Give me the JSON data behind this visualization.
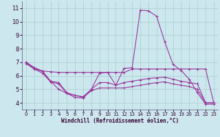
{
  "xlabel": "Windchill (Refroidissement éolien,°C)",
  "bg_color": "#cce8ee",
  "line_color": "#993399",
  "grid_color": "#aacccc",
  "xlim": [
    -0.5,
    23.5
  ],
  "ylim": [
    3.5,
    11.5
  ],
  "xticks": [
    0,
    1,
    2,
    3,
    4,
    5,
    6,
    7,
    8,
    9,
    10,
    11,
    12,
    13,
    14,
    15,
    16,
    17,
    18,
    19,
    20,
    21,
    22,
    23
  ],
  "yticks": [
    4,
    5,
    6,
    7,
    8,
    9,
    10,
    11
  ],
  "series": [
    {
      "x": [
        0,
        1,
        2,
        3,
        4,
        5,
        6,
        7,
        8,
        9,
        10,
        11,
        12,
        13,
        14,
        15,
        16,
        17,
        18,
        19,
        20,
        21,
        22,
        23
      ],
      "y": [
        7.0,
        6.6,
        6.35,
        5.6,
        5.0,
        4.7,
        4.4,
        4.35,
        5.0,
        6.2,
        6.25,
        5.3,
        6.55,
        6.6,
        10.85,
        10.8,
        10.4,
        8.5,
        6.85,
        6.4,
        5.75,
        4.75,
        3.9,
        3.9
      ]
    },
    {
      "x": [
        0,
        1,
        2,
        3,
        4,
        5,
        6,
        7,
        8,
        9,
        10,
        11,
        12,
        13,
        14,
        15,
        16,
        17,
        18,
        19,
        20,
        21,
        22,
        23
      ],
      "y": [
        7.0,
        6.6,
        6.35,
        6.3,
        6.25,
        6.25,
        6.25,
        6.25,
        6.25,
        6.25,
        6.25,
        6.25,
        6.25,
        6.5,
        6.5,
        6.5,
        6.5,
        6.5,
        6.5,
        6.5,
        6.5,
        6.5,
        6.5,
        4.0
      ]
    },
    {
      "x": [
        0,
        1,
        2,
        3,
        4,
        5,
        6,
        7,
        8,
        9,
        10,
        11,
        12,
        13,
        14,
        15,
        16,
        17,
        18,
        19,
        20,
        21,
        22,
        23
      ],
      "y": [
        7.0,
        6.5,
        6.35,
        5.6,
        5.5,
        4.75,
        4.55,
        4.45,
        5.0,
        5.5,
        5.5,
        5.3,
        5.5,
        5.6,
        5.7,
        5.8,
        5.85,
        5.9,
        5.75,
        5.6,
        5.5,
        5.4,
        4.0,
        4.0
      ]
    },
    {
      "x": [
        0,
        1,
        2,
        3,
        4,
        5,
        6,
        7,
        8,
        9,
        10,
        11,
        12,
        13,
        14,
        15,
        16,
        17,
        18,
        19,
        20,
        21,
        22,
        23
      ],
      "y": [
        6.9,
        6.5,
        6.2,
        5.55,
        5.4,
        4.7,
        4.55,
        4.4,
        4.9,
        5.1,
        5.1,
        5.1,
        5.1,
        5.2,
        5.3,
        5.4,
        5.5,
        5.55,
        5.4,
        5.3,
        5.2,
        5.0,
        4.0,
        4.0
      ]
    }
  ]
}
